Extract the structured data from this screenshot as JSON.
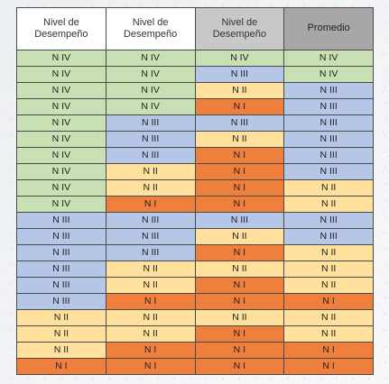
{
  "colors": {
    "N IV": "#c8e0b3",
    "N III": "#b5c6e7",
    "N II": "#ffe09c",
    "N I": "#ef7f3d"
  },
  "table": {
    "headers": [
      "Nivel de Desempeño",
      "Nivel de Desempeño",
      "Nivel de Desempeño",
      "Promedio"
    ],
    "rows": [
      [
        "N IV",
        "N IV",
        "N IV",
        "N IV"
      ],
      [
        "N IV",
        "N IV",
        "N III",
        "N IV"
      ],
      [
        "N IV",
        "N IV",
        "N II",
        "N III"
      ],
      [
        "N IV",
        "N IV",
        "N I",
        "N III"
      ],
      [
        "N IV",
        "N III",
        "N III",
        "N III"
      ],
      [
        "N IV",
        "N III",
        "N II",
        "N III"
      ],
      [
        "N IV",
        "N III",
        "N I",
        "N III"
      ],
      [
        "N IV",
        "N II",
        "N I",
        "N III"
      ],
      [
        "N IV",
        "N II",
        "N I",
        "N II"
      ],
      [
        "N IV",
        "N I",
        "N I",
        "N II"
      ],
      [
        "N III",
        "N III",
        "N III",
        "N III"
      ],
      [
        "N III",
        "N III",
        "N II",
        "N III"
      ],
      [
        "N III",
        "N III",
        "N I",
        "N II"
      ],
      [
        "N III",
        "N II",
        "N II",
        "N II"
      ],
      [
        "N III",
        "N II",
        "N I",
        "N II"
      ],
      [
        "N III",
        "N I",
        "N I",
        "N I"
      ],
      [
        "N II",
        "N II",
        "N II",
        "N II"
      ],
      [
        "N II",
        "N II",
        "N I",
        "N II"
      ],
      [
        "N II",
        "N I",
        "N I",
        "N I"
      ],
      [
        "N I",
        "N I",
        "N I",
        "N I"
      ]
    ]
  }
}
